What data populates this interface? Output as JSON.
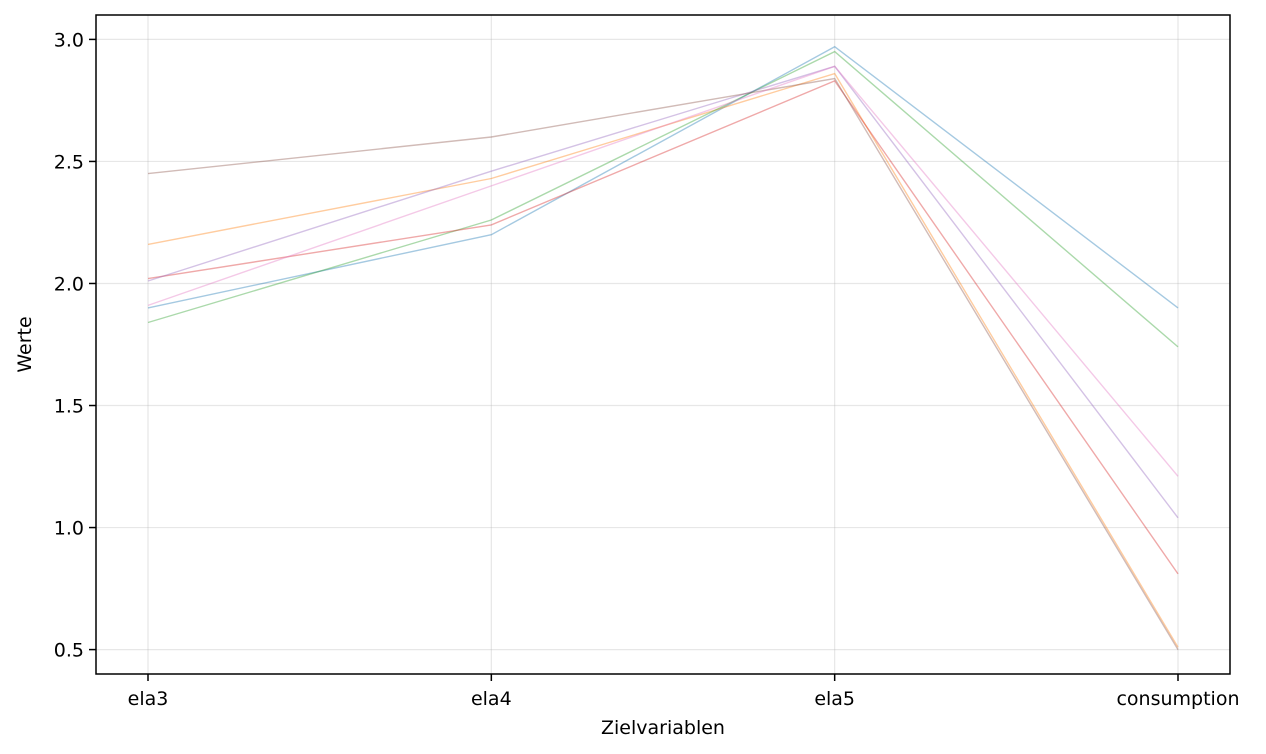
{
  "chart_data": {
    "type": "line",
    "title": "",
    "xlabel": "Zielvariablen",
    "ylabel": "Werte",
    "categories": [
      "ela3",
      "ela4",
      "ela5",
      "consumption"
    ],
    "ylim": [
      0.4,
      3.1
    ],
    "yticks": [
      0.5,
      1.0,
      1.5,
      2.0,
      2.5,
      3.0
    ],
    "ytick_labels": [
      "0.5",
      "1.0",
      "1.5",
      "2.0",
      "2.5",
      "3.0"
    ],
    "grid": true,
    "legend": false,
    "series": [
      {
        "color": "#1f77b4",
        "values": [
          1.9,
          2.2,
          2.97,
          1.9
        ]
      },
      {
        "color": "#ff7f0e",
        "values": [
          2.16,
          2.43,
          2.86,
          0.51
        ]
      },
      {
        "color": "#2ca02c",
        "values": [
          1.84,
          2.26,
          2.95,
          1.74
        ]
      },
      {
        "color": "#d62728",
        "values": [
          2.02,
          2.24,
          2.83,
          0.81
        ]
      },
      {
        "color": "#9467bd",
        "values": [
          2.01,
          2.46,
          2.89,
          1.04
        ]
      },
      {
        "color": "#8c564b",
        "values": [
          2.45,
          2.6,
          2.84,
          0.5
        ]
      },
      {
        "color": "#e377c2",
        "values": [
          1.91,
          2.4,
          2.89,
          1.21
        ]
      }
    ]
  }
}
